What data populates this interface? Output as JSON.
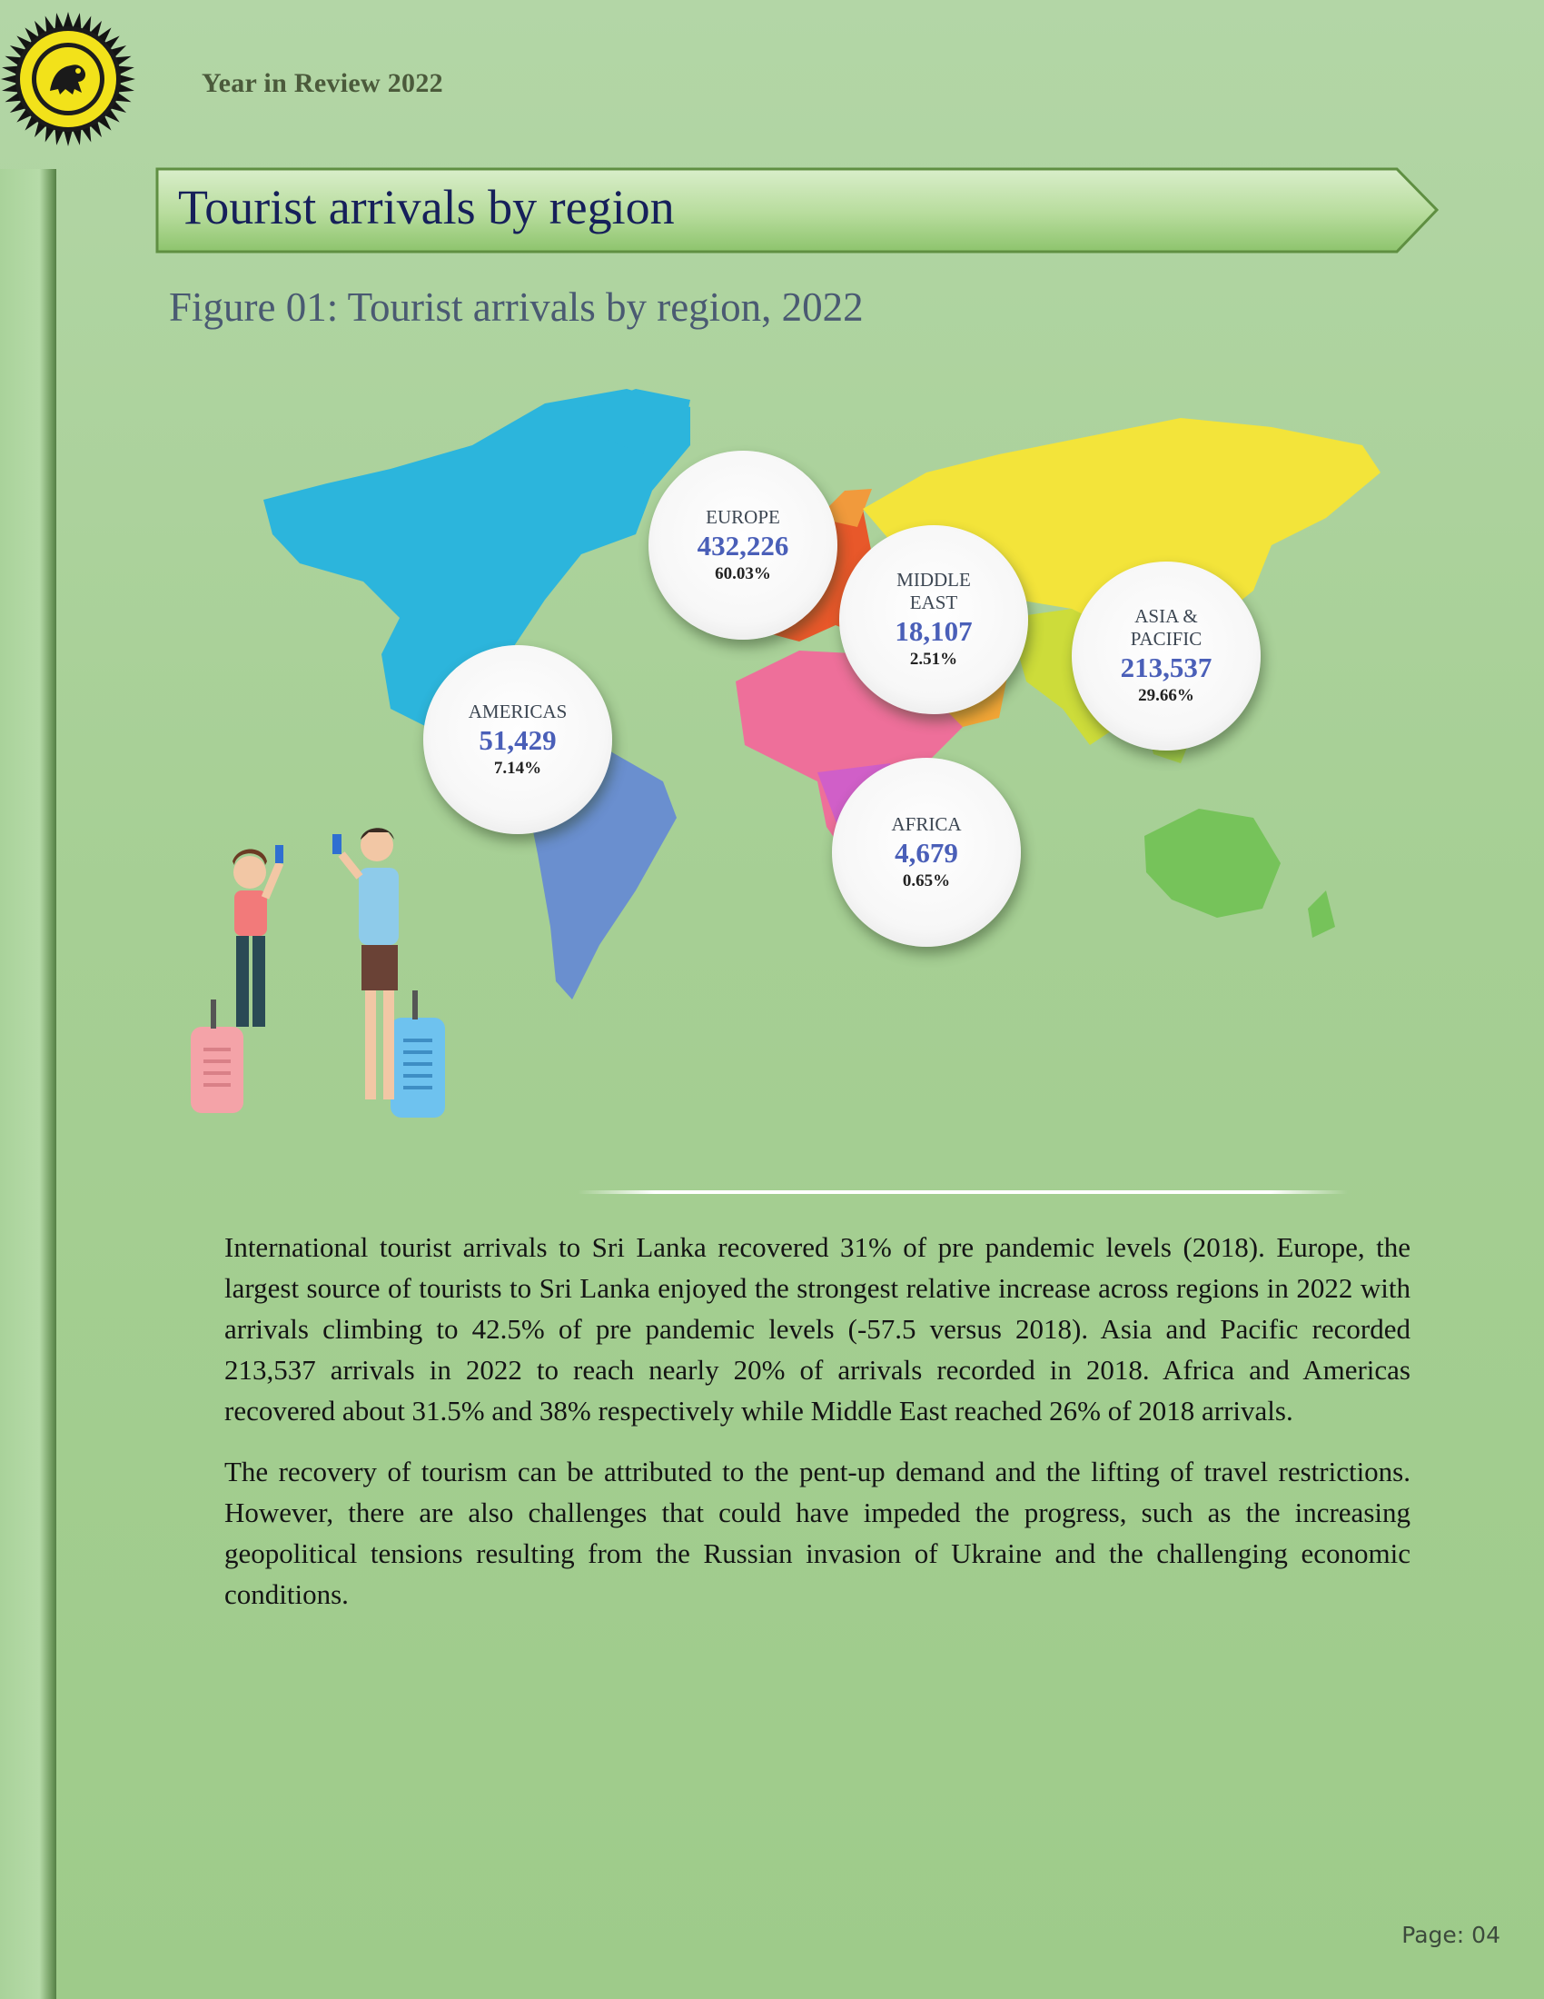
{
  "header": {
    "year_label": "Year in Review 2022"
  },
  "section": {
    "title": "Tourist arrivals by region"
  },
  "figure": {
    "caption": "Figure 01: Tourist arrivals by region, 2022"
  },
  "regions": [
    {
      "name": "EUROPE",
      "arrivals": "432,226",
      "share": "60.03%"
    },
    {
      "name": "MIDDLE\nEAST",
      "arrivals": "18,107",
      "share": "2.51%"
    },
    {
      "name": "ASIA &\nPACIFIC",
      "arrivals": "213,537",
      "share": "29.66%"
    },
    {
      "name": "AMERICAS",
      "arrivals": "51,429",
      "share": "7.14%"
    },
    {
      "name": "AFRICA",
      "arrivals": "4,679",
      "share": "0.65%"
    }
  ],
  "body": {
    "paragraphs": [
      "International tourist arrivals to Sri Lanka recovered 31% of pre pandemic levels (2018). Europe, the largest source of tourists to Sri Lanka enjoyed the strongest relative increase across regions in 2022 with arrivals climbing to 42.5% of pre pandemic levels (-57.5 versus 2018). Asia and Pacific recorded 213,537 arrivals in 2022 to reach nearly 20% of arrivals recorded in 2018. Africa and Americas recovered about 31.5% and 38% respectively while Middle East reached 26% of 2018 arrivals.",
      "The recovery of tourism can be attributed to the pent-up demand and the lifting of travel restrictions. However, there are also challenges that could have impeded the progress, such as the increasing geopolitical tensions resulting from the Russian invasion of Ukraine and the challenging economic conditions."
    ]
  },
  "footer": {
    "page_label": "Page: 04"
  },
  "colors": {
    "americas_north": "#2cb5dc",
    "americas_south": "#6a8fcf",
    "europe": "#e8582a",
    "africa": "#ee6f9a",
    "middle_east": "#f2a536",
    "asia_north": "#f3e43a",
    "asia_south": "#cddc3a",
    "oceania": "#76c35a",
    "title_text": "#16205a",
    "bubble_number": "#4a5fb8"
  },
  "icons": [
    "emblem-seal-icon",
    "tourist-couple-illustration"
  ]
}
